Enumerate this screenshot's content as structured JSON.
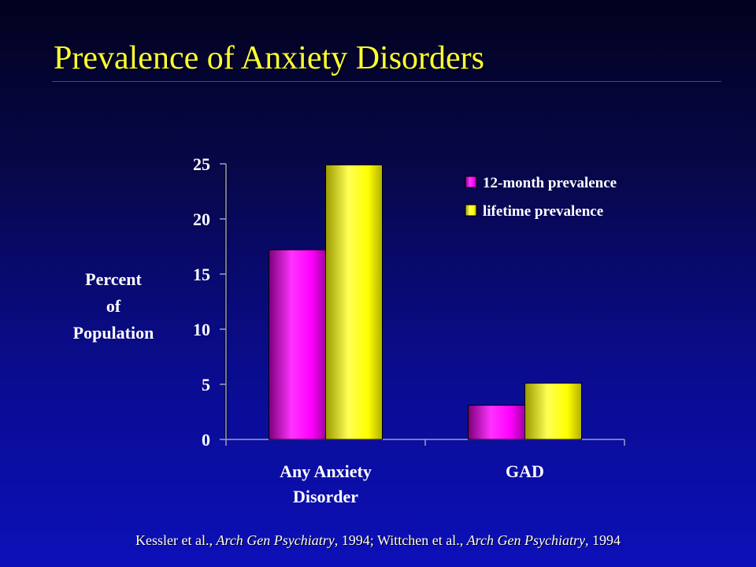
{
  "slide": {
    "title": "Prevalence of Anxiety Disorders"
  },
  "citation": {
    "part1": "Kessler et al., ",
    "journal1": "Arch Gen Psychiatry",
    "part2": ", 1994; Wittchen et al., ",
    "journal2": "Arch Gen Psychiatry",
    "part3": ", 1994"
  },
  "chart_data": {
    "type": "bar",
    "title": "Prevalence of Anxiety Disorders",
    "xlabel": "",
    "ylabel": [
      "Percent",
      "of",
      "Population"
    ],
    "ylim": [
      0,
      25
    ],
    "yticks": [
      0,
      5,
      10,
      15,
      20,
      25
    ],
    "categories": [
      [
        "Any Anxiety",
        "Disorder"
      ],
      [
        "GAD"
      ]
    ],
    "series": [
      {
        "name": "12-month prevalence",
        "values": [
          17.2,
          3.1
        ],
        "color": "#ff00ff"
      },
      {
        "name": "lifetime prevalence",
        "values": [
          24.9,
          5.1
        ],
        "color": "#ffff00"
      }
    ],
    "grid": false,
    "legend": "top-right"
  }
}
